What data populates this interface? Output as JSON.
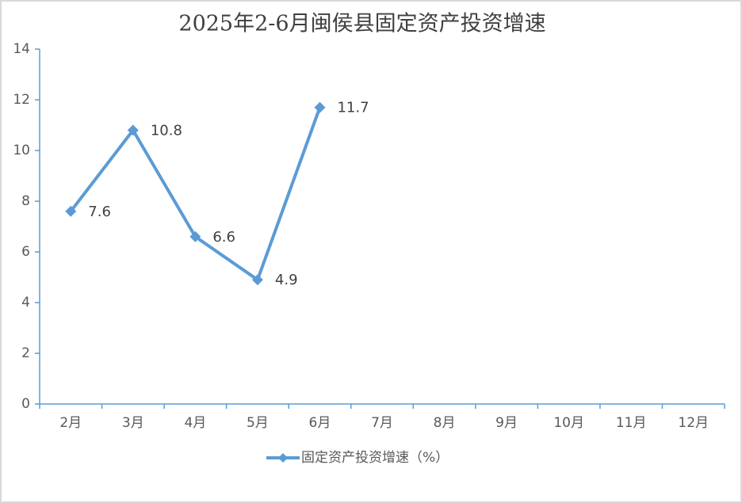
{
  "chart_data": {
    "type": "line",
    "title": "2025年2-6月闽侯县固定资产投资增速",
    "categories": [
      "2月",
      "3月",
      "4月",
      "5月",
      "6月",
      "7月",
      "8月",
      "9月",
      "10月",
      "11月",
      "12月"
    ],
    "series": [
      {
        "name": "固定资产投资增速（%）",
        "color": "#5b9bd5",
        "values": [
          7.6,
          10.8,
          6.6,
          4.9,
          11.7,
          null,
          null,
          null,
          null,
          null,
          null
        ]
      }
    ],
    "ylim": [
      0,
      14
    ],
    "yticks": [
      0,
      2,
      4,
      6,
      8,
      10,
      12,
      14
    ],
    "grid": false,
    "legend": "bottom"
  }
}
